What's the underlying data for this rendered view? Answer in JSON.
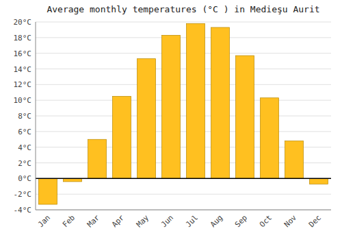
{
  "chart_data": {
    "type": "bar",
    "title": "Average monthly temperatures (°C ) in Medieşu Aurit",
    "categories": [
      "Jan",
      "Feb",
      "Mar",
      "Apr",
      "May",
      "Jun",
      "Jul",
      "Aug",
      "Sep",
      "Oct",
      "Nov",
      "Dec"
    ],
    "values": [
      -3.3,
      -0.4,
      5.0,
      10.5,
      15.3,
      18.3,
      19.8,
      19.3,
      15.7,
      10.3,
      4.8,
      -0.7
    ],
    "color": "#FFC020",
    "ylim": [
      -4,
      20
    ],
    "yticks": [
      {
        "value": -4,
        "label": "-4°C"
      },
      {
        "value": -2,
        "label": "-2°C"
      },
      {
        "value": 0,
        "label": "0°C"
      },
      {
        "value": 2,
        "label": "2°C"
      },
      {
        "value": 4,
        "label": "4°C"
      },
      {
        "value": 6,
        "label": "6°C"
      },
      {
        "value": 8,
        "label": "8°C"
      },
      {
        "value": 10,
        "label": "10°C"
      },
      {
        "value": 12,
        "label": "12°C"
      },
      {
        "value": 14,
        "label": "14°C"
      },
      {
        "value": 16,
        "label": "16°C"
      },
      {
        "value": 18,
        "label": "18°C"
      },
      {
        "value": 20,
        "label": "20°C"
      }
    ],
    "grid": true
  }
}
